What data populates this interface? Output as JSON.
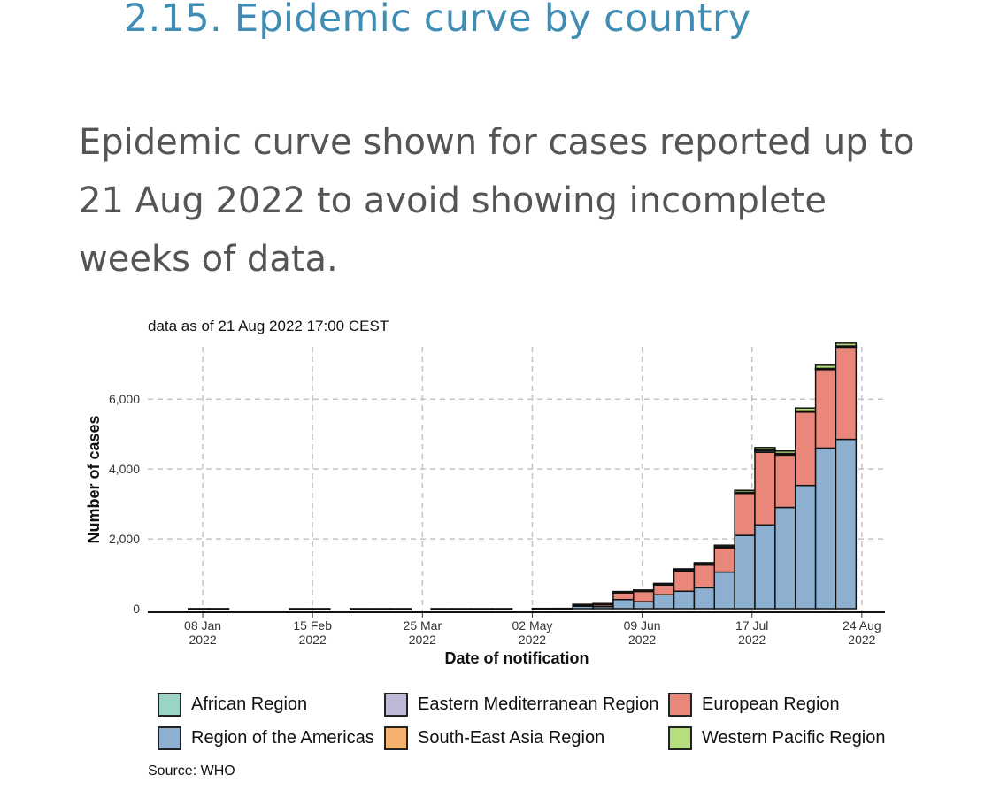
{
  "section_title": "2.15. Epidemic curve by country",
  "intro_text": "Epidemic curve shown for cases reported up to 21 Aug 2022 to avoid showing incomplete weeks of data.",
  "chart_caption": "data as of 21 Aug 2022 17:00 CEST",
  "source": "Source: WHO",
  "legend": [
    {
      "label": "African Region",
      "color": "#9bd3c5"
    },
    {
      "label": "Eastern Mediterranean Region",
      "color": "#bfb8d6"
    },
    {
      "label": "European Region",
      "color": "#e9887a"
    },
    {
      "label": "Region of the Americas",
      "color": "#8db0d0"
    },
    {
      "label": "South-East Asia Region",
      "color": "#f4b16f"
    },
    {
      "label": "Western Pacific Region",
      "color": "#b7de7c"
    }
  ],
  "chart_data": {
    "type": "bar",
    "stacked": true,
    "xlabel": "Date of notification",
    "ylabel": "Number of cases",
    "ylim": [
      0,
      7500
    ],
    "y_ticks": [
      0,
      2000,
      4000,
      6000
    ],
    "y_tick_labels": [
      "0",
      "2,000",
      "4,000",
      "6,000"
    ],
    "x_ticks": [
      {
        "date": "2022-01-08",
        "line1": "08 Jan",
        "line2": "2022"
      },
      {
        "date": "2022-02-15",
        "line1": "15 Feb",
        "line2": "2022"
      },
      {
        "date": "2022-03-25",
        "line1": "25 Mar",
        "line2": "2022"
      },
      {
        "date": "2022-05-02",
        "line1": "02 May",
        "line2": "2022"
      },
      {
        "date": "2022-06-09",
        "line1": "09 Jun",
        "line2": "2022"
      },
      {
        "date": "2022-07-17",
        "line1": "17 Jul",
        "line2": "2022"
      },
      {
        "date": "2022-08-24",
        "line1": "24 Aug",
        "line2": "2022"
      }
    ],
    "x_range": [
      "2021-12-20",
      "2022-09-01"
    ],
    "grid": true,
    "legend_position": "bottom",
    "bar_width_days": 7,
    "weeks": [
      "2022-01-03",
      "2022-01-10",
      "2022-02-07",
      "2022-02-14",
      "2022-02-28",
      "2022-03-07",
      "2022-03-14",
      "2022-03-28",
      "2022-04-04",
      "2022-04-11",
      "2022-04-18",
      "2022-05-02",
      "2022-05-09",
      "2022-05-16",
      "2022-05-23",
      "2022-05-30",
      "2022-06-06",
      "2022-06-13",
      "2022-06-20",
      "2022-06-27",
      "2022-07-04",
      "2022-07-11",
      "2022-07-18",
      "2022-07-25",
      "2022-08-01",
      "2022-08-08",
      "2022-08-15"
    ],
    "series": [
      {
        "name": "African Region",
        "values": [
          3,
          3,
          2,
          2,
          2,
          2,
          2,
          2,
          2,
          2,
          2,
          2,
          1,
          2,
          3,
          5,
          5,
          8,
          10,
          20,
          25,
          30,
          70,
          40,
          30,
          25,
          20
        ]
      },
      {
        "name": "Eastern Mediterranean Region",
        "values": [
          0,
          0,
          0,
          0,
          0,
          0,
          0,
          0,
          0,
          0,
          0,
          0,
          0,
          0,
          0,
          1,
          1,
          1,
          1,
          2,
          2,
          3,
          3,
          3,
          3,
          3,
          2
        ]
      },
      {
        "name": "European Region",
        "values": [
          0,
          0,
          0,
          0,
          0,
          0,
          0,
          0,
          0,
          0,
          0,
          5,
          5,
          50,
          80,
          220,
          320,
          300,
          600,
          660,
          700,
          1200,
          2080,
          1500,
          2100,
          2250,
          2650
        ]
      },
      {
        "name": "Region of the Americas",
        "values": [
          0,
          0,
          0,
          0,
          0,
          0,
          0,
          0,
          0,
          0,
          0,
          1,
          2,
          70,
          60,
          260,
          200,
          400,
          500,
          600,
          1050,
          2100,
          2400,
          2900,
          3530,
          4600,
          4850
        ]
      },
      {
        "name": "South-East Asia Region",
        "values": [
          0,
          0,
          0,
          0,
          0,
          0,
          0,
          0,
          0,
          0,
          0,
          0,
          0,
          0,
          0,
          1,
          1,
          1,
          1,
          2,
          2,
          2,
          3,
          3,
          4,
          4,
          3
        ]
      },
      {
        "name": "Western Pacific Region",
        "values": [
          0,
          0,
          0,
          0,
          0,
          0,
          0,
          0,
          0,
          0,
          0,
          0,
          0,
          1,
          2,
          5,
          8,
          15,
          30,
          35,
          40,
          55,
          60,
          70,
          80,
          90,
          80
        ]
      }
    ]
  }
}
